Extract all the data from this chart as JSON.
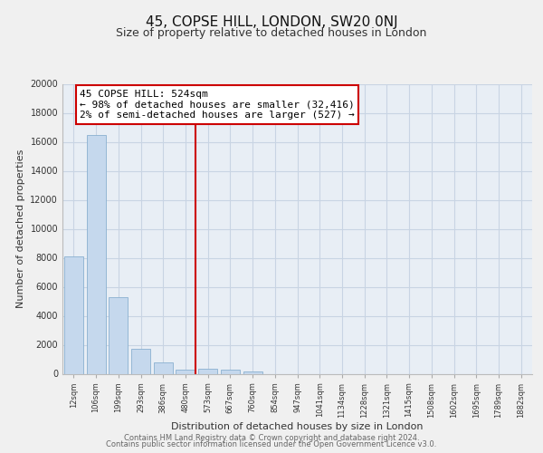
{
  "title": "45, COPSE HILL, LONDON, SW20 0NJ",
  "subtitle": "Size of property relative to detached houses in London",
  "xlabel": "Distribution of detached houses by size in London",
  "ylabel": "Number of detached properties",
  "bar_color": "#c5d8ed",
  "bar_edge_color": "#8ab0d0",
  "vline_x_index": 5.45,
  "vline_color": "#cc0000",
  "annotation_box_color": "#cc0000",
  "annotation_lines": [
    "45 COPSE HILL: 524sqm",
    "← 98% of detached houses are smaller (32,416)",
    "2% of semi-detached houses are larger (527) →"
  ],
  "categories": [
    "12sqm",
    "106sqm",
    "199sqm",
    "293sqm",
    "386sqm",
    "480sqm",
    "573sqm",
    "667sqm",
    "760sqm",
    "854sqm",
    "947sqm",
    "1041sqm",
    "1134sqm",
    "1228sqm",
    "1321sqm",
    "1415sqm",
    "1508sqm",
    "1602sqm",
    "1695sqm",
    "1789sqm",
    "1882sqm"
  ],
  "bar_heights": [
    8100,
    16500,
    5300,
    1750,
    800,
    270,
    350,
    270,
    180,
    0,
    0,
    0,
    0,
    0,
    0,
    0,
    0,
    0,
    0,
    0,
    0
  ],
  "ylim": [
    0,
    20000
  ],
  "yticks": [
    0,
    2000,
    4000,
    6000,
    8000,
    10000,
    12000,
    14000,
    16000,
    18000,
    20000
  ],
  "footer_line1": "Contains HM Land Registry data © Crown copyright and database right 2024.",
  "footer_line2": "Contains public sector information licensed under the Open Government Licence v3.0.",
  "bg_color": "#f0f0f0",
  "plot_bg_color": "#e8eef5",
  "grid_color": "#c8d4e3"
}
